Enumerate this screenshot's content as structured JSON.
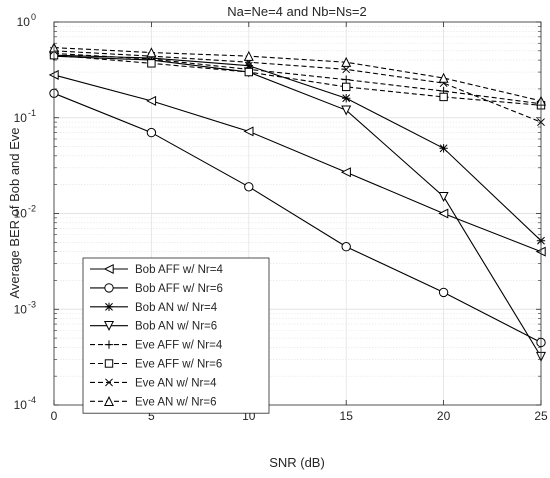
{
  "chart_data": {
    "type": "line",
    "title": "Na=Ne=4 and Nb=Ns=2",
    "xlabel": "SNR (dB)",
    "ylabel": "Average BER of Bob and Eve",
    "xlim": [
      0,
      25
    ],
    "ylim": [
      0.0001,
      1
    ],
    "yscale": "log",
    "grid": true,
    "legend_position": "bottom-left",
    "x_ticks": [
      0,
      5,
      10,
      15,
      20,
      25
    ],
    "x_tick_labels": [
      "0",
      "5",
      "10",
      "15",
      "20",
      "25"
    ],
    "y_ticks": [
      {
        "value": 1,
        "base": "10",
        "exp": "0"
      },
      {
        "value": 0.1,
        "base": "10",
        "exp": "-1"
      },
      {
        "value": 0.01,
        "base": "10",
        "exp": "-2"
      },
      {
        "value": 0.001,
        "base": "10",
        "exp": "-3"
      },
      {
        "value": 0.0001,
        "base": "10",
        "exp": "-4"
      }
    ],
    "x": [
      0,
      5,
      10,
      15,
      20,
      25
    ],
    "series": [
      {
        "name": "Bob AFF w/ Nr=4",
        "line": "solid",
        "marker": "triangle-left",
        "values": [
          0.28,
          0.15,
          0.072,
          0.027,
          0.01,
          0.004
        ]
      },
      {
        "name": "Bob AFF w/ Nr=6",
        "line": "solid",
        "marker": "circle",
        "values": [
          0.18,
          0.07,
          0.019,
          0.0045,
          0.0015,
          0.00045
        ]
      },
      {
        "name": "Bob AN w/ Nr=4",
        "line": "solid",
        "marker": "asterisk",
        "values": [
          0.45,
          0.42,
          0.35,
          0.16,
          0.048,
          0.0052
        ]
      },
      {
        "name": "Bob AN w/ Nr=6",
        "line": "solid",
        "marker": "triangle-down",
        "values": [
          0.44,
          0.4,
          0.3,
          0.12,
          0.015,
          0.00032
        ]
      },
      {
        "name": "Eve AFF w/ Nr=4",
        "line": "dashed",
        "marker": "plus",
        "values": [
          0.47,
          0.41,
          0.32,
          0.25,
          0.19,
          0.14
        ]
      },
      {
        "name": "Eve AFF w/ Nr=6",
        "line": "dashed",
        "marker": "square",
        "values": [
          0.45,
          0.37,
          0.3,
          0.21,
          0.165,
          0.135
        ]
      },
      {
        "name": "Eve AN w/ Nr=4",
        "line": "dashed",
        "marker": "x",
        "values": [
          0.5,
          0.44,
          0.38,
          0.32,
          0.23,
          0.09
        ]
      },
      {
        "name": "Eve AN w/ Nr=6",
        "line": "dashed",
        "marker": "triangle-up",
        "values": [
          0.54,
          0.48,
          0.44,
          0.38,
          0.26,
          0.15
        ]
      }
    ],
    "colors": {
      "line": "#000000",
      "grid": "#e3e3e3",
      "axis": "#262626",
      "background": "#ffffff"
    }
  }
}
